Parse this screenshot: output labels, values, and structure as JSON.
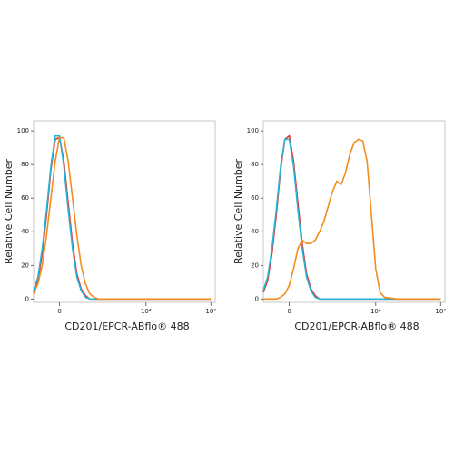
{
  "chart_data": [
    {
      "type": "line",
      "xlabel": "CD201/EPCR-ABflo® 488",
      "ylabel": "Relative Cell Number",
      "x": [
        -1.2,
        -1.0,
        -0.8,
        -0.6,
        -0.4,
        -0.2,
        0,
        0.2,
        0.4,
        0.6,
        0.8,
        1.0,
        1.2,
        1.4,
        1.6,
        1.8,
        2.0,
        3,
        4,
        5,
        6,
        7
      ],
      "series": [
        {
          "color": "#e8302a",
          "values": [
            4,
            11,
            27,
            50,
            77,
            95,
            96,
            82,
            57,
            33,
            15,
            6,
            2,
            0,
            0,
            0,
            0,
            0,
            0,
            0,
            0,
            0
          ]
        },
        {
          "color": "#27b4d8",
          "values": [
            5,
            13,
            30,
            53,
            79,
            97,
            97,
            79,
            53,
            30,
            13,
            5,
            1,
            0,
            0,
            0,
            0,
            0,
            0,
            0,
            0,
            0
          ]
        },
        {
          "color": "#f28c1e",
          "values": [
            3,
            9,
            20,
            38,
            60,
            82,
            96,
            96,
            82,
            60,
            38,
            20,
            9,
            3,
            1,
            0,
            0,
            0,
            0,
            0,
            0,
            0
          ]
        }
      ],
      "xlim": [
        -1.2,
        7.2
      ],
      "xticks": [
        {
          "value": 0,
          "label": "0"
        },
        {
          "value": 4,
          "label": "10⁴"
        },
        {
          "value": 7,
          "label": "10⁷"
        }
      ],
      "ylim": [
        -2,
        106
      ],
      "yticks": [
        0,
        20,
        40,
        60,
        80,
        100
      ]
    },
    {
      "type": "line",
      "xlabel": "CD201/EPCR-ABflo® 488",
      "ylabel": "Relative Cell Number",
      "x": [
        -1.2,
        -1.0,
        -0.8,
        -0.6,
        -0.4,
        -0.2,
        0,
        0.2,
        0.4,
        0.6,
        0.8,
        1.0,
        1.2,
        1.4,
        1.6,
        1.8,
        2.0,
        2.2,
        2.4,
        2.6,
        2.8,
        3.0,
        3.2,
        3.4,
        3.6,
        3.8,
        4.0,
        4.2,
        4.4,
        5,
        6,
        7
      ],
      "series": [
        {
          "color": "#e8302a",
          "values": [
            4,
            11,
            27,
            50,
            77,
            95,
            97,
            82,
            57,
            33,
            15,
            6,
            2,
            0,
            0,
            0,
            0,
            0,
            0,
            0,
            0,
            0,
            0,
            0,
            0,
            0,
            0,
            0,
            0,
            0,
            0,
            0
          ]
        },
        {
          "color": "#27b4d8",
          "values": [
            5,
            13,
            30,
            53,
            79,
            95,
            95,
            79,
            53,
            30,
            13,
            5,
            1,
            0,
            0,
            0,
            0,
            0,
            0,
            0,
            0,
            0,
            0,
            0,
            0,
            0,
            0,
            0,
            0,
            0,
            0,
            0
          ]
        },
        {
          "color": "#f28c1e",
          "values": [
            0,
            0,
            0,
            0,
            1,
            3,
            8,
            18,
            30,
            35,
            33,
            33,
            35,
            40,
            46,
            55,
            64,
            70,
            68,
            75,
            86,
            93,
            95,
            94,
            82,
            50,
            18,
            4,
            1,
            0,
            0,
            0
          ]
        }
      ],
      "xlim": [
        -1.2,
        7.2
      ],
      "xticks": [
        {
          "value": 0,
          "label": "0"
        },
        {
          "value": 4,
          "label": "10⁴"
        },
        {
          "value": 7,
          "label": "10⁷"
        }
      ],
      "ylim": [
        -2,
        106
      ],
      "yticks": [
        0,
        20,
        40,
        60,
        80,
        100
      ]
    }
  ]
}
